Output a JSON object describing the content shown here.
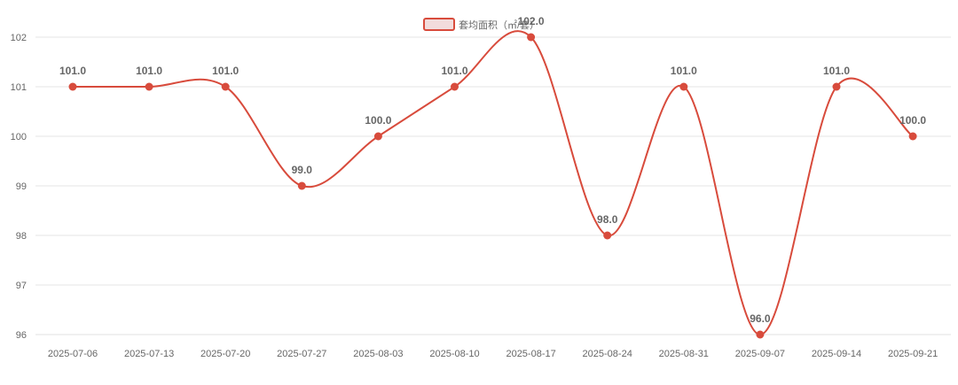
{
  "chart_data": {
    "type": "line",
    "categories": [
      "2025-07-06",
      "2025-07-13",
      "2025-07-20",
      "2025-07-27",
      "2025-08-03",
      "2025-08-10",
      "2025-08-17",
      "2025-08-24",
      "2025-08-31",
      "2025-09-07",
      "2025-09-14",
      "2025-09-21"
    ],
    "series": [
      {
        "name": "套均面积（㎡/套）",
        "values": [
          101.0,
          101.0,
          101.0,
          99.0,
          100.0,
          101.0,
          102.0,
          98.0,
          101.0,
          96.0,
          101.0,
          100.0
        ],
        "data_labels": [
          "101.0",
          "101.0",
          "101.0",
          "99.0",
          "100.0",
          "101.0",
          "102.0",
          "98.0",
          "101.0",
          "96.0",
          "101.0",
          "100.0"
        ],
        "color": "#d84b3c"
      }
    ],
    "y_ticks": [
      "96",
      "97",
      "98",
      "99",
      "100",
      "101",
      "102"
    ],
    "ylim": [
      96,
      102
    ],
    "smooth": true,
    "grid": "horizontal",
    "legend_position": "top-center",
    "legend_fill": "#f2dcdc"
  }
}
